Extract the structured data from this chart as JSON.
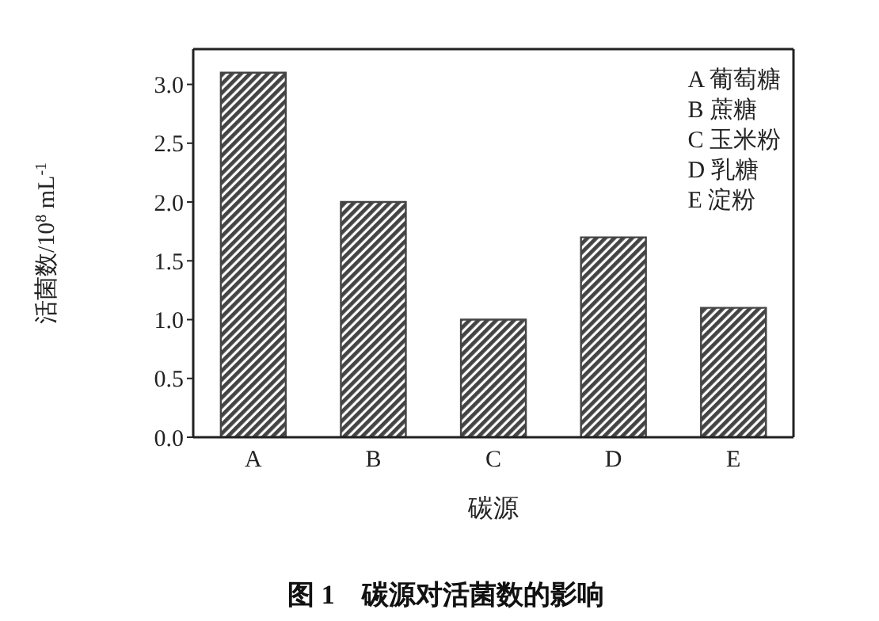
{
  "chart_data": {
    "type": "bar",
    "title": "图 1　碳源对活菌数的影响",
    "xlabel": "碳源",
    "ylabel": "活菌数/10$^{8}$ mL$^{-1}$",
    "categories": [
      "A",
      "B",
      "C",
      "D",
      "E"
    ],
    "values": [
      3.1,
      2.0,
      1.0,
      1.7,
      1.1
    ],
    "color": "#444444",
    "ylim": [
      0,
      3.3
    ],
    "yticks": [
      {
        "value": 0,
        "label": "0.0"
      },
      {
        "value": 0.5,
        "label": "0.5"
      },
      {
        "value": 1,
        "label": "1.0"
      },
      {
        "value": 1.5,
        "label": "1.5"
      },
      {
        "value": 2,
        "label": "2.0"
      },
      {
        "value": 2.5,
        "label": "2.5"
      },
      {
        "value": 3,
        "label": "3.0"
      }
    ],
    "grid": false,
    "annotations": [
      "A 葡萄糖",
      "B 蔗糖",
      "C 玉米粉",
      "D 乳糖",
      "E 淀粉"
    ]
  }
}
